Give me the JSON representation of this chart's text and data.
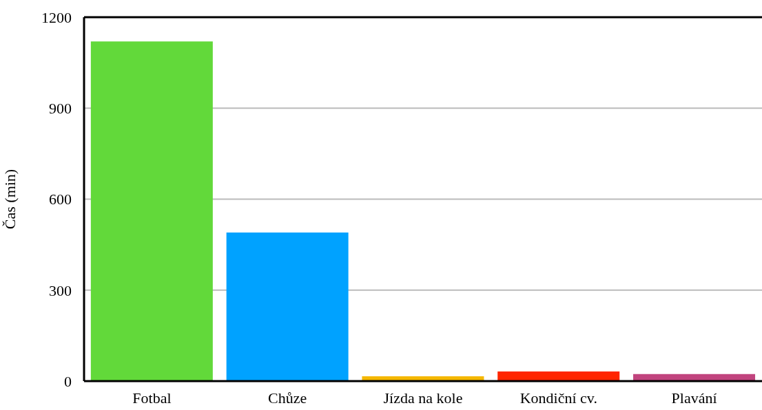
{
  "chart_data": {
    "type": "bar",
    "ylabel": "Čas (min)",
    "categories": [
      "Fotbal",
      "Chůze",
      "Jízda na kole",
      "Kondiční cv.",
      "Plavání"
    ],
    "values": [
      1120,
      490,
      16,
      32,
      23
    ],
    "colors": [
      "#62d93a",
      "#00a2ff",
      "#f5b800",
      "#ff2600",
      "#c1447e"
    ],
    "ylim": [
      0,
      1200
    ],
    "yticks": [
      0,
      300,
      600,
      900,
      1200
    ],
    "grid": "y"
  }
}
